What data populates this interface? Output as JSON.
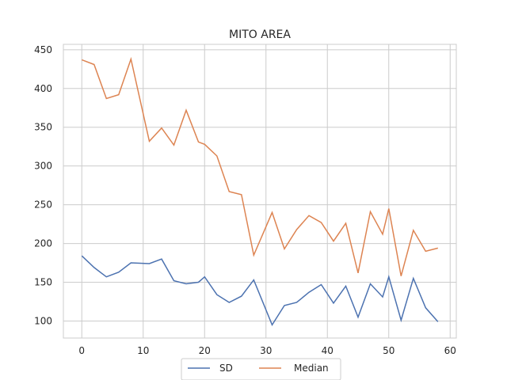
{
  "chart_data": {
    "type": "line",
    "title": "MITO AREA",
    "xlabel": "",
    "ylabel": "",
    "xlim": [
      -3,
      61
    ],
    "ylim": [
      78,
      457
    ],
    "xticks": [
      0,
      10,
      20,
      30,
      40,
      50,
      60
    ],
    "yticks": [
      100,
      150,
      200,
      250,
      300,
      350,
      400,
      450
    ],
    "grid": true,
    "legend_position": "bottom-center",
    "series": [
      {
        "name": "SD",
        "color": "#4c72b0",
        "x": [
          0,
          2,
          4,
          6,
          8,
          11,
          13,
          15,
          17,
          19,
          20,
          22,
          24,
          26,
          28,
          31,
          33,
          35,
          37,
          39,
          41,
          43,
          45,
          47,
          49,
          50,
          52,
          54,
          56,
          58
        ],
        "values": [
          184,
          169,
          157,
          163,
          175,
          174,
          180,
          152,
          148,
          150,
          157,
          134,
          124,
          132,
          153,
          95,
          120,
          124,
          137,
          147,
          123,
          145,
          105,
          148,
          131,
          157,
          101,
          155,
          117,
          99
        ]
      },
      {
        "name": "Median",
        "color": "#dd8452",
        "x": [
          0,
          2,
          4,
          6,
          8,
          11,
          13,
          15,
          17,
          19,
          20,
          22,
          24,
          26,
          28,
          31,
          33,
          35,
          37,
          39,
          41,
          43,
          45,
          47,
          49,
          50,
          52,
          54,
          56,
          58
        ],
        "values": [
          437,
          431,
          387,
          392,
          438,
          332,
          349,
          327,
          372,
          331,
          328,
          313,
          267,
          263,
          185,
          240,
          193,
          218,
          236,
          227,
          203,
          226,
          162,
          241,
          212,
          245,
          158,
          217,
          190,
          194
        ]
      }
    ]
  }
}
